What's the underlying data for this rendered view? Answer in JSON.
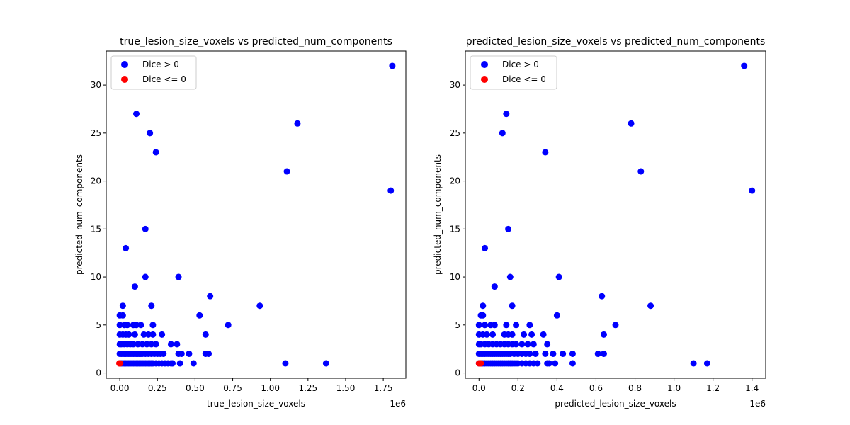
{
  "chart_data": [
    {
      "type": "scatter",
      "title": "true_lesion_size_voxels vs predicted_num_components",
      "xlabel": "true_lesion_size_voxels",
      "ylabel": "predicted_num_components",
      "x_offset_label": "1e6",
      "xlim": [
        -0.09,
        1.9
      ],
      "ylim": [
        -0.55,
        33.55
      ],
      "x_ticks": [
        0.0,
        0.25,
        0.5,
        0.75,
        1.0,
        1.25,
        1.5,
        1.75
      ],
      "x_tick_labels": [
        "0.00",
        "0.25",
        "0.50",
        "0.75",
        "1.00",
        "1.25",
        "1.50",
        "1.75"
      ],
      "y_ticks": [
        0,
        5,
        10,
        15,
        20,
        25,
        30
      ],
      "y_tick_labels": [
        "0",
        "5",
        "10",
        "15",
        "20",
        "25",
        "30"
      ],
      "legend_position": "upper-left",
      "series": [
        {
          "name": "Dice > 0",
          "color": "#0000ff",
          "points": [
            [
              1.81,
              32
            ],
            [
              0.11,
              27
            ],
            [
              1.18,
              26
            ],
            [
              0.2,
              25
            ],
            [
              0.24,
              23
            ],
            [
              1.11,
              21
            ],
            [
              1.8,
              19
            ],
            [
              0.17,
              15
            ],
            [
              0.04,
              13
            ],
            [
              0.17,
              10
            ],
            [
              0.39,
              10
            ],
            [
              0.1,
              9
            ],
            [
              0.6,
              8
            ],
            [
              0.02,
              7
            ],
            [
              0.21,
              7
            ],
            [
              0.93,
              7
            ],
            [
              0.0,
              6
            ],
            [
              0.02,
              6
            ],
            [
              0.53,
              6
            ],
            [
              0.0,
              5
            ],
            [
              0.03,
              5
            ],
            [
              0.05,
              5
            ],
            [
              0.09,
              5
            ],
            [
              0.11,
              5
            ],
            [
              0.14,
              5
            ],
            [
              0.22,
              5
            ],
            [
              0.72,
              5
            ],
            [
              0.0,
              4
            ],
            [
              0.02,
              4
            ],
            [
              0.04,
              4
            ],
            [
              0.06,
              4
            ],
            [
              0.1,
              4
            ],
            [
              0.16,
              4
            ],
            [
              0.19,
              4
            ],
            [
              0.22,
              4
            ],
            [
              0.28,
              4
            ],
            [
              0.57,
              4
            ],
            [
              0.0,
              3
            ],
            [
              0.01,
              3
            ],
            [
              0.03,
              3
            ],
            [
              0.05,
              3
            ],
            [
              0.07,
              3
            ],
            [
              0.09,
              3
            ],
            [
              0.12,
              3
            ],
            [
              0.15,
              3
            ],
            [
              0.18,
              3
            ],
            [
              0.21,
              3
            ],
            [
              0.24,
              3
            ],
            [
              0.34,
              3
            ],
            [
              0.38,
              3
            ],
            [
              0.0,
              2
            ],
            [
              0.01,
              2
            ],
            [
              0.02,
              2
            ],
            [
              0.03,
              2
            ],
            [
              0.04,
              2
            ],
            [
              0.05,
              2
            ],
            [
              0.06,
              2
            ],
            [
              0.07,
              2
            ],
            [
              0.08,
              2
            ],
            [
              0.09,
              2
            ],
            [
              0.1,
              2
            ],
            [
              0.11,
              2
            ],
            [
              0.12,
              2
            ],
            [
              0.13,
              2
            ],
            [
              0.14,
              2
            ],
            [
              0.15,
              2
            ],
            [
              0.17,
              2
            ],
            [
              0.19,
              2
            ],
            [
              0.21,
              2
            ],
            [
              0.23,
              2
            ],
            [
              0.25,
              2
            ],
            [
              0.27,
              2
            ],
            [
              0.29,
              2
            ],
            [
              0.39,
              2
            ],
            [
              0.41,
              2
            ],
            [
              0.46,
              2
            ],
            [
              0.57,
              2
            ],
            [
              0.59,
              2
            ],
            [
              0.0,
              1
            ],
            [
              0.01,
              1
            ],
            [
              0.02,
              1
            ],
            [
              0.03,
              1
            ],
            [
              0.04,
              1
            ],
            [
              0.05,
              1
            ],
            [
              0.06,
              1
            ],
            [
              0.07,
              1
            ],
            [
              0.08,
              1
            ],
            [
              0.09,
              1
            ],
            [
              0.1,
              1
            ],
            [
              0.11,
              1
            ],
            [
              0.12,
              1
            ],
            [
              0.13,
              1
            ],
            [
              0.14,
              1
            ],
            [
              0.15,
              1
            ],
            [
              0.16,
              1
            ],
            [
              0.17,
              1
            ],
            [
              0.18,
              1
            ],
            [
              0.19,
              1
            ],
            [
              0.2,
              1
            ],
            [
              0.21,
              1
            ],
            [
              0.22,
              1
            ],
            [
              0.24,
              1
            ],
            [
              0.26,
              1
            ],
            [
              0.28,
              1
            ],
            [
              0.3,
              1
            ],
            [
              0.32,
              1
            ],
            [
              0.34,
              1
            ],
            [
              0.35,
              1
            ],
            [
              0.4,
              1
            ],
            [
              0.49,
              1
            ],
            [
              1.1,
              1
            ],
            [
              1.37,
              1
            ]
          ]
        },
        {
          "name": "Dice <= 0",
          "color": "#ff0000",
          "points": [
            [
              0.0,
              1
            ],
            [
              -0.003,
              1
            ],
            [
              0.003,
              1
            ]
          ]
        }
      ]
    },
    {
      "type": "scatter",
      "title": "predicted_lesion_size_voxels vs predicted_num_components",
      "xlabel": "predicted_lesion_size_voxels",
      "ylabel": "predicted_num_components",
      "x_offset_label": "1e6",
      "xlim": [
        -0.07,
        1.47
      ],
      "ylim": [
        -0.55,
        33.55
      ],
      "x_ticks": [
        0.0,
        0.2,
        0.4,
        0.6,
        0.8,
        1.0,
        1.2,
        1.4
      ],
      "x_tick_labels": [
        "0.0",
        "0.2",
        "0.4",
        "0.6",
        "0.8",
        "1.0",
        "1.2",
        "1.4"
      ],
      "y_ticks": [
        0,
        5,
        10,
        15,
        20,
        25,
        30
      ],
      "y_tick_labels": [
        "0",
        "5",
        "10",
        "15",
        "20",
        "25",
        "30"
      ],
      "legend_position": "upper-left",
      "series": [
        {
          "name": "Dice > 0",
          "color": "#0000ff",
          "points": [
            [
              1.36,
              32
            ],
            [
              0.14,
              27
            ],
            [
              0.78,
              26
            ],
            [
              0.12,
              25
            ],
            [
              0.34,
              23
            ],
            [
              0.83,
              21
            ],
            [
              1.4,
              19
            ],
            [
              0.15,
              15
            ],
            [
              0.03,
              13
            ],
            [
              0.16,
              10
            ],
            [
              0.41,
              10
            ],
            [
              0.08,
              9
            ],
            [
              0.63,
              8
            ],
            [
              0.02,
              7
            ],
            [
              0.17,
              7
            ],
            [
              0.88,
              7
            ],
            [
              0.01,
              6
            ],
            [
              0.02,
              6
            ],
            [
              0.4,
              6
            ],
            [
              0.0,
              5
            ],
            [
              0.03,
              5
            ],
            [
              0.06,
              5
            ],
            [
              0.08,
              5
            ],
            [
              0.14,
              5
            ],
            [
              0.19,
              5
            ],
            [
              0.26,
              5
            ],
            [
              0.7,
              5
            ],
            [
              0.0,
              4
            ],
            [
              0.02,
              4
            ],
            [
              0.04,
              4
            ],
            [
              0.07,
              4
            ],
            [
              0.13,
              4
            ],
            [
              0.15,
              4
            ],
            [
              0.17,
              4
            ],
            [
              0.23,
              4
            ],
            [
              0.27,
              4
            ],
            [
              0.33,
              4
            ],
            [
              0.64,
              4
            ],
            [
              0.0,
              3
            ],
            [
              0.01,
              3
            ],
            [
              0.03,
              3
            ],
            [
              0.05,
              3
            ],
            [
              0.07,
              3
            ],
            [
              0.09,
              3
            ],
            [
              0.11,
              3
            ],
            [
              0.13,
              3
            ],
            [
              0.15,
              3
            ],
            [
              0.17,
              3
            ],
            [
              0.19,
              3
            ],
            [
              0.22,
              3
            ],
            [
              0.25,
              3
            ],
            [
              0.28,
              3
            ],
            [
              0.35,
              3
            ],
            [
              0.0,
              2
            ],
            [
              0.01,
              2
            ],
            [
              0.02,
              2
            ],
            [
              0.03,
              2
            ],
            [
              0.04,
              2
            ],
            [
              0.05,
              2
            ],
            [
              0.06,
              2
            ],
            [
              0.07,
              2
            ],
            [
              0.08,
              2
            ],
            [
              0.09,
              2
            ],
            [
              0.1,
              2
            ],
            [
              0.11,
              2
            ],
            [
              0.12,
              2
            ],
            [
              0.13,
              2
            ],
            [
              0.14,
              2
            ],
            [
              0.15,
              2
            ],
            [
              0.16,
              2
            ],
            [
              0.18,
              2
            ],
            [
              0.2,
              2
            ],
            [
              0.22,
              2
            ],
            [
              0.24,
              2
            ],
            [
              0.26,
              2
            ],
            [
              0.29,
              2
            ],
            [
              0.34,
              2
            ],
            [
              0.38,
              2
            ],
            [
              0.43,
              2
            ],
            [
              0.48,
              2
            ],
            [
              0.61,
              2
            ],
            [
              0.64,
              2
            ],
            [
              0.0,
              1
            ],
            [
              0.01,
              1
            ],
            [
              0.02,
              1
            ],
            [
              0.03,
              1
            ],
            [
              0.04,
              1
            ],
            [
              0.05,
              1
            ],
            [
              0.06,
              1
            ],
            [
              0.07,
              1
            ],
            [
              0.08,
              1
            ],
            [
              0.09,
              1
            ],
            [
              0.1,
              1
            ],
            [
              0.11,
              1
            ],
            [
              0.12,
              1
            ],
            [
              0.13,
              1
            ],
            [
              0.14,
              1
            ],
            [
              0.15,
              1
            ],
            [
              0.16,
              1
            ],
            [
              0.17,
              1
            ],
            [
              0.18,
              1
            ],
            [
              0.19,
              1
            ],
            [
              0.2,
              1
            ],
            [
              0.22,
              1
            ],
            [
              0.24,
              1
            ],
            [
              0.26,
              1
            ],
            [
              0.28,
              1
            ],
            [
              0.3,
              1
            ],
            [
              0.35,
              1
            ],
            [
              0.36,
              1
            ],
            [
              0.39,
              1
            ],
            [
              0.48,
              1
            ],
            [
              1.1,
              1
            ],
            [
              1.17,
              1
            ]
          ]
        },
        {
          "name": "Dice <= 0",
          "color": "#ff0000",
          "points": [
            [
              0.0,
              1
            ],
            [
              0.005,
              1
            ],
            [
              0.01,
              1
            ]
          ]
        }
      ]
    }
  ]
}
